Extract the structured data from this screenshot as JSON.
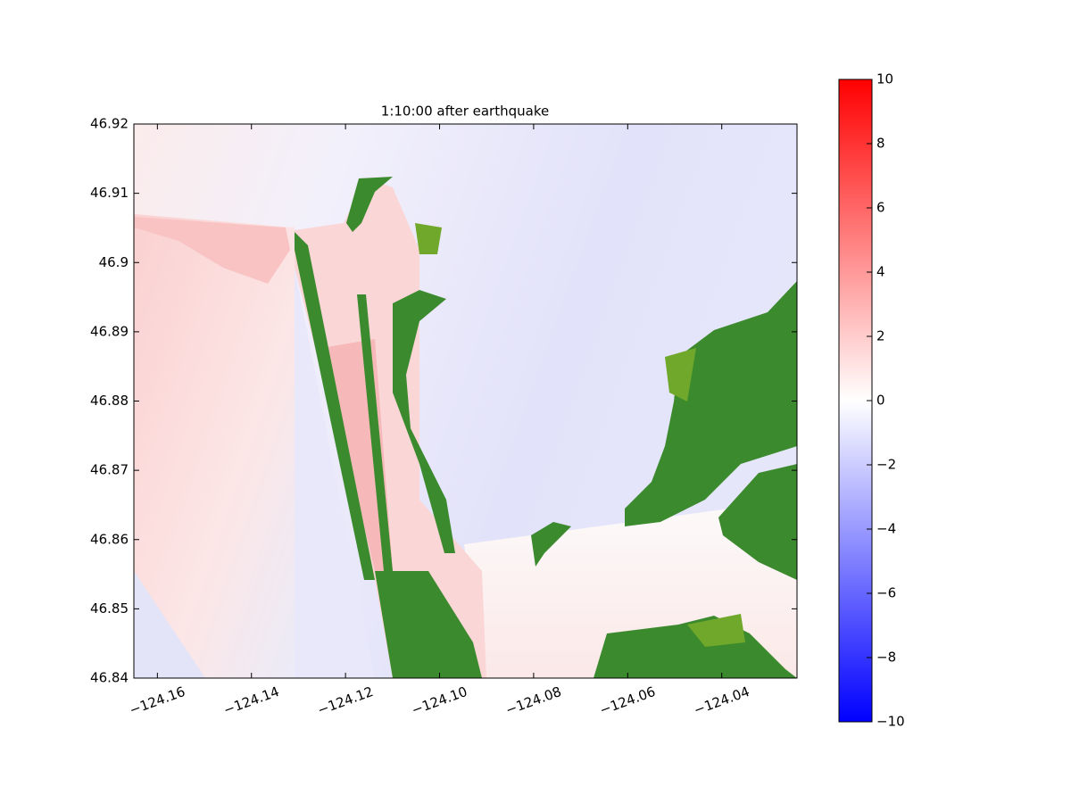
{
  "chart_data": {
    "type": "heatmap",
    "title": "1:10:00 after earthquake",
    "xlim": [
      -124.165,
      -124.024
    ],
    "xticks": [
      {
        "value": -124.16,
        "label": "−124.16"
      },
      {
        "value": -124.14,
        "label": "−124.14"
      },
      {
        "value": -124.12,
        "label": "−124.12"
      },
      {
        "value": -124.1,
        "label": "−124.10"
      },
      {
        "value": -124.08,
        "label": "−124.08"
      },
      {
        "value": -124.06,
        "label": "−124.06"
      },
      {
        "value": -124.04,
        "label": "−124.04"
      }
    ],
    "ylim": [
      46.84,
      46.92
    ],
    "yticks": [
      46.84,
      46.85,
      46.86,
      46.87,
      46.88,
      46.89,
      46.9,
      46.91,
      46.92
    ],
    "colormap": "bwr",
    "colorbar": {
      "lim": [
        -10,
        10
      ],
      "ticks": [
        {
          "value": -10,
          "label": "−10"
        },
        {
          "value": -8,
          "label": "−8"
        },
        {
          "value": -6,
          "label": "−6"
        },
        {
          "value": -4,
          "label": "−4"
        },
        {
          "value": -2,
          "label": "−2"
        },
        0,
        2,
        4,
        6,
        8,
        10
      ]
    }
  }
}
